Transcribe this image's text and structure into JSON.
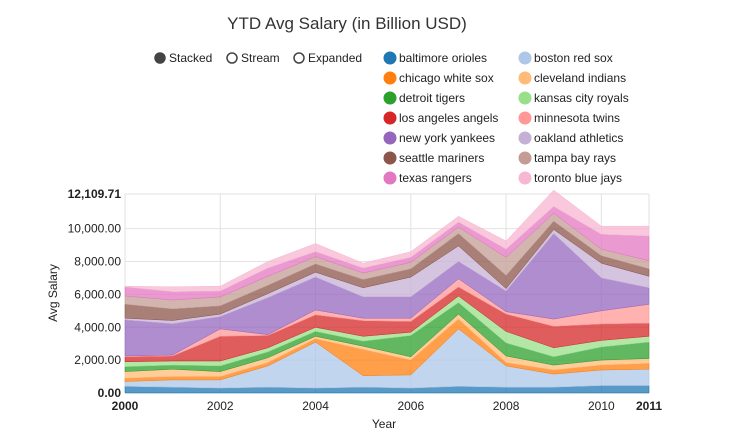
{
  "chart_data": {
    "type": "area",
    "mode": "stacked",
    "title": "YTD Avg Salary (in Billion USD)",
    "xlabel": "Year",
    "ylabel": "Avg Salary",
    "controls": [
      {
        "label": "Stacked",
        "selected": true
      },
      {
        "label": "Stream",
        "selected": false
      },
      {
        "label": "Expanded",
        "selected": false
      }
    ],
    "x": [
      2000,
      2001,
      2002,
      2003,
      2004,
      2005,
      2006,
      2007,
      2008,
      2009,
      2010,
      2011
    ],
    "xticks": [
      "2000",
      "2002",
      "2004",
      "2006",
      "2008",
      "2010",
      "2011"
    ],
    "xlim": [
      2000,
      2011
    ],
    "ylim": [
      0,
      12109.71
    ],
    "yticks": [
      "0.00",
      "2,000.00",
      "4,000.00",
      "6,000.00",
      "8,000.00",
      "10,000.00",
      "12,109.71"
    ],
    "grid": true,
    "legend_position": "top-right",
    "series": [
      {
        "name": "baltimore orioles",
        "color": "#1f77b4",
        "values": [
          400,
          350,
          300,
          350,
          300,
          350,
          300,
          400,
          350,
          350,
          450,
          450
        ]
      },
      {
        "name": "boston red sox",
        "color": "#aec7e8",
        "values": [
          300,
          450,
          500,
          1300,
          2800,
          700,
          800,
          3500,
          1300,
          800,
          950,
          1000
        ]
      },
      {
        "name": "chicago white sox",
        "color": "#ff7f0e",
        "values": [
          200,
          200,
          200,
          200,
          200,
          1600,
          900,
          600,
          200,
          250,
          300,
          350
        ]
      },
      {
        "name": "cleveland indians",
        "color": "#ffbb78",
        "values": [
          400,
          450,
          300,
          300,
          150,
          200,
          200,
          300,
          400,
          300,
          300,
          300
        ]
      },
      {
        "name": "detroit tigers",
        "color": "#2ca02c",
        "values": [
          300,
          250,
          350,
          350,
          300,
          300,
          1300,
          700,
          800,
          500,
          800,
          1000
        ]
      },
      {
        "name": "kansas city royals",
        "color": "#98df8a",
        "values": [
          300,
          250,
          300,
          250,
          250,
          300,
          200,
          400,
          700,
          550,
          400,
          350
        ]
      },
      {
        "name": "los angeles angels",
        "color": "#d62728",
        "values": [
          300,
          300,
          1500,
          750,
          750,
          950,
          650,
          550,
          1050,
          1300,
          1000,
          800
        ]
      },
      {
        "name": "minnesota twins",
        "color": "#ff9896",
        "values": [
          50,
          60,
          450,
          50,
          300,
          150,
          200,
          500,
          150,
          450,
          800,
          1150
        ]
      },
      {
        "name": "new york yankees",
        "color": "#9467bd",
        "values": [
          2200,
          1900,
          750,
          2250,
          2000,
          1300,
          1300,
          1050,
          1250,
          5200,
          2000,
          1000
        ]
      },
      {
        "name": "oakland athletics",
        "color": "#c5b0d5",
        "values": [
          100,
          200,
          150,
          250,
          300,
          550,
          1200,
          950,
          150,
          250,
          900,
          700
        ]
      },
      {
        "name": "seattle mariners",
        "color": "#8c564b",
        "values": [
          850,
          700,
          500,
          500,
          500,
          500,
          500,
          750,
          800,
          500,
          450,
          450
        ]
      },
      {
        "name": "tampa bay rays",
        "color": "#c49c94",
        "values": [
          500,
          550,
          550,
          550,
          450,
          400,
          400,
          400,
          1100,
          500,
          400,
          500
        ]
      },
      {
        "name": "texas rangers",
        "color": "#e377c2",
        "values": [
          550,
          500,
          350,
          500,
          300,
          300,
          300,
          300,
          500,
          400,
          900,
          1500
        ]
      },
      {
        "name": "toronto blue jays",
        "color": "#f7b6d2",
        "values": [
          50,
          300,
          300,
          400,
          500,
          300,
          350,
          350,
          500,
          1000,
          500,
          600
        ]
      }
    ]
  }
}
